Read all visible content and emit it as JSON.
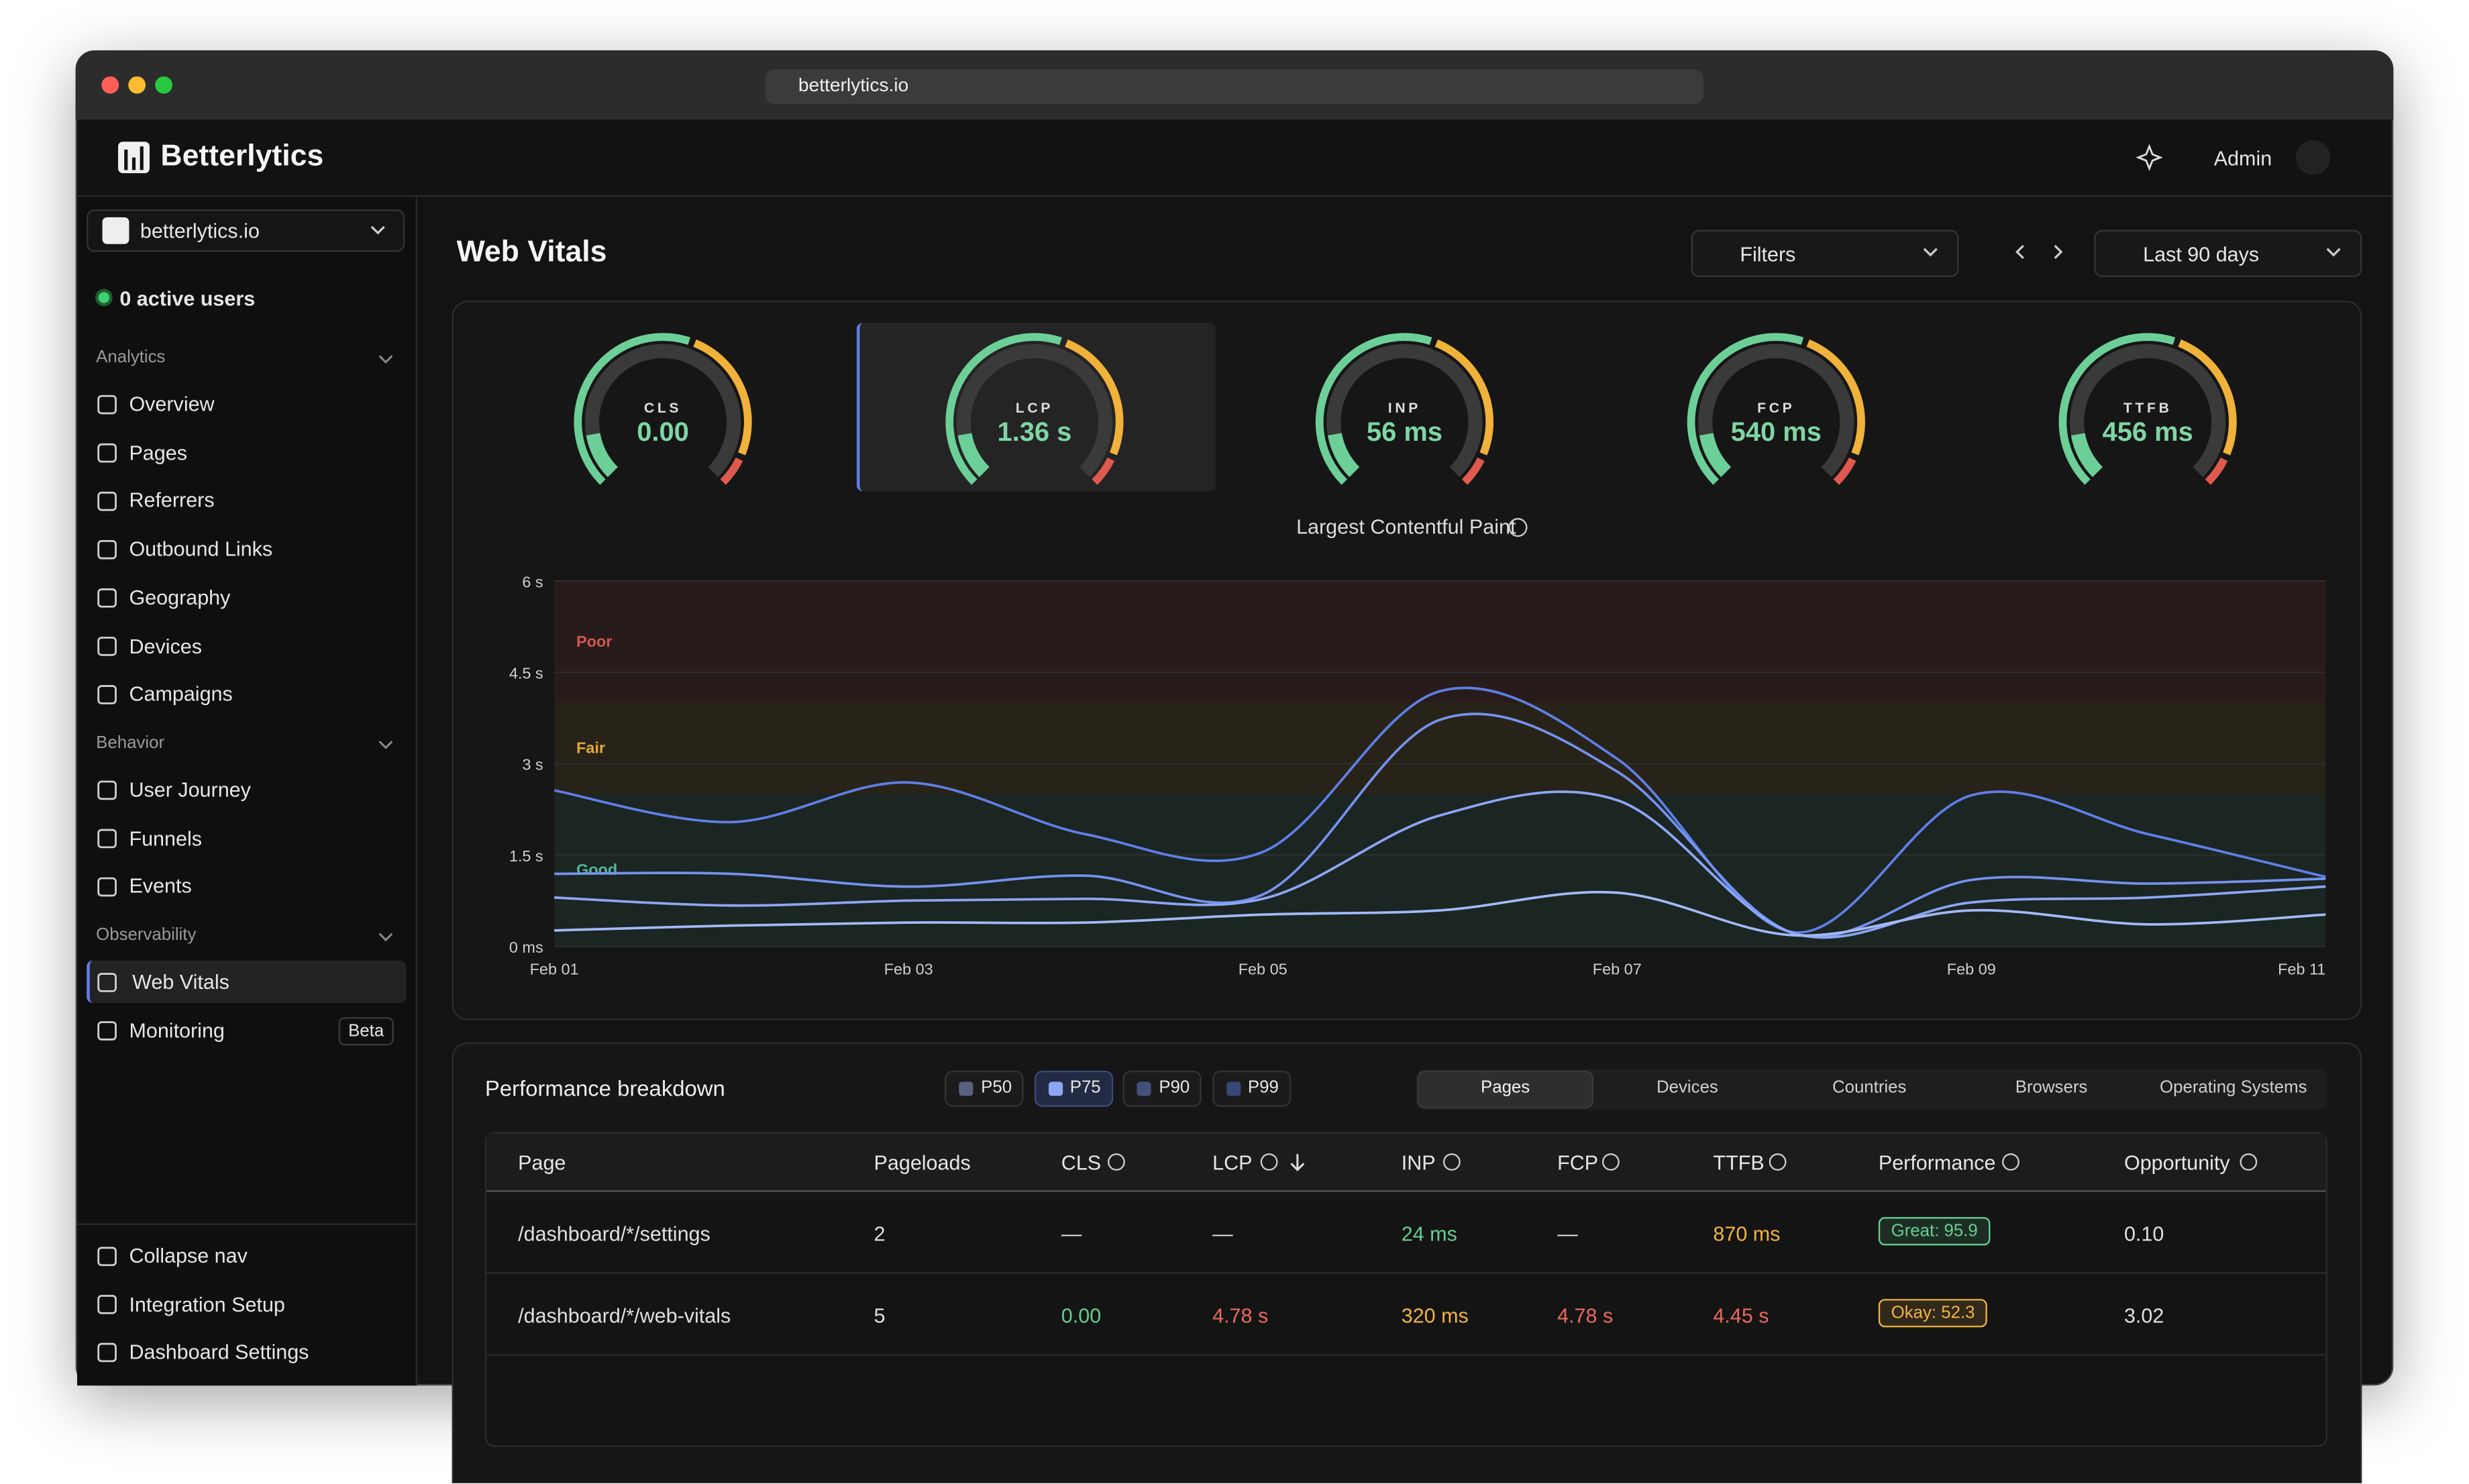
{
  "browser": {
    "url": "betterlytics.io"
  },
  "header": {
    "brand": "Betterlytics",
    "user": "Admin"
  },
  "sidebar": {
    "site": "betterlytics.io",
    "active_users": "0 active users",
    "sections": [
      {
        "title": "Analytics",
        "items": [
          {
            "label": "Overview"
          },
          {
            "label": "Pages"
          },
          {
            "label": "Referrers"
          },
          {
            "label": "Outbound Links"
          },
          {
            "label": "Geography"
          },
          {
            "label": "Devices"
          },
          {
            "label": "Campaigns"
          }
        ]
      },
      {
        "title": "Behavior",
        "items": [
          {
            "label": "User Journey"
          },
          {
            "label": "Funnels"
          },
          {
            "label": "Events"
          }
        ]
      },
      {
        "title": "Observability",
        "items": [
          {
            "label": "Web Vitals",
            "active": true
          },
          {
            "label": "Monitoring",
            "badge": "Beta"
          }
        ]
      }
    ],
    "footer": [
      {
        "label": "Collapse nav"
      },
      {
        "label": "Integration Setup"
      },
      {
        "label": "Dashboard Settings"
      }
    ]
  },
  "page": {
    "title": "Web Vitals",
    "filters": "Filters",
    "range": "Last 90 days"
  },
  "gauges": [
    {
      "label": "CLS",
      "value": "0.00"
    },
    {
      "label": "LCP",
      "value": "1.36 s",
      "selected": true
    },
    {
      "label": "INP",
      "value": "56 ms"
    },
    {
      "label": "FCP",
      "value": "540 ms"
    },
    {
      "label": "TTFB",
      "value": "456 ms"
    }
  ],
  "chart_data": {
    "type": "line",
    "title": "Largest Contentful Paint",
    "categories": [
      "Feb 01",
      null,
      "Feb 03",
      null,
      "Feb 05",
      null,
      "Feb 07",
      null,
      "Feb 09",
      null,
      "Feb 11"
    ],
    "series": [
      {
        "name": "P50",
        "color": "#a3b9f6",
        "values": [
          0.26,
          0.34,
          0.39,
          0.39,
          0.52,
          0.59,
          0.88,
          0.18,
          0.59,
          0.36,
          0.52
        ]
      },
      {
        "name": "P75",
        "color": "#8ba6f3",
        "values": [
          0.8,
          0.67,
          0.75,
          0.78,
          0.78,
          2.15,
          2.4,
          0.21,
          0.72,
          0.8,
          0.98
        ]
      },
      {
        "name": "P90",
        "color": "#7592ee",
        "values": [
          1.19,
          1.19,
          0.98,
          1.16,
          0.85,
          3.72,
          2.87,
          0.21,
          1.09,
          1.03,
          1.11
        ]
      },
      {
        "name": "P99",
        "color": "#5f7fe6",
        "values": [
          2.56,
          2.04,
          2.69,
          1.84,
          1.55,
          4.19,
          3.08,
          0.23,
          2.48,
          1.84,
          1.14
        ]
      }
    ],
    "ylim": [
      0,
      6
    ],
    "yticks": [
      {
        "value": 0,
        "label": "0 ms"
      },
      {
        "value": 1.5,
        "label": "1.5 s"
      },
      {
        "value": 3,
        "label": "3 s"
      },
      {
        "value": 4.5,
        "label": "4.5 s"
      },
      {
        "value": 6,
        "label": "6 s"
      }
    ],
    "zones": [
      {
        "name": "Good",
        "from": 0,
        "to": 2.5,
        "color": "#4fb89a"
      },
      {
        "name": "Fair",
        "from": 2.5,
        "to": 4,
        "color": "#e0a93a"
      },
      {
        "name": "Poor",
        "from": 4,
        "to": 6,
        "color": "#d0584c"
      }
    ],
    "grid": true
  },
  "breakdown": {
    "title": "Performance breakdown",
    "active_percentile": 1,
    "tabs": [
      "Pages",
      "Devices",
      "Countries",
      "Browsers",
      "Operating Systems"
    ],
    "active_tab": 0,
    "columns": [
      "Page",
      "Pageloads",
      "CLS",
      "LCP",
      "INP",
      "FCP",
      "TTFB",
      "Performance",
      "Opportunity"
    ],
    "sort_column": 3,
    "rows": [
      {
        "cells": [
          "/dashboard/*/settings",
          "2",
          "—",
          "—",
          "24 ms",
          "—",
          "870 ms",
          "Great: 95.9",
          "0.10"
        ],
        "tones": {
          "4": "good",
          "6": "fair",
          "7": "good"
        }
      },
      {
        "cells": [
          "/dashboard/*/web-vitals",
          "5",
          "0.00",
          "4.78 s",
          "320 ms",
          "4.78 s",
          "4.45 s",
          "Okay: 52.3",
          "3.02"
        ],
        "tones": {
          "2": "good",
          "3": "poor",
          "4": "fair",
          "5": "poor",
          "6": "poor",
          "7": "fair"
        }
      }
    ]
  }
}
